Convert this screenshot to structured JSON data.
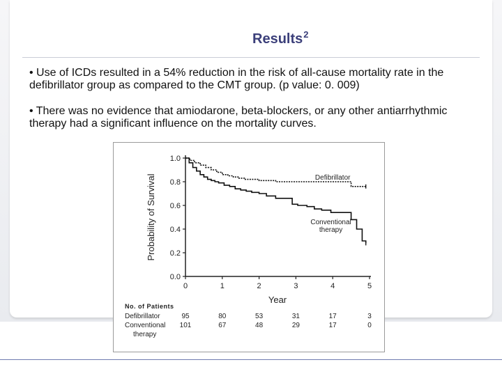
{
  "slide": {
    "title": "Results",
    "title_superscript": "2",
    "bullets": [
      "•   Use of ICDs resulted in a 54% reduction in the risk of all-cause mortality rate in the defibrillator group as compared to the CMT group. (p value: 0. 009)",
      "•  There was no evidence that amiodarone, beta-blockers, or any other antiarrhythmic therapy had a significant influence on the mortality curves."
    ]
  },
  "chart_data": {
    "type": "line",
    "step": true,
    "xlabel": "Year",
    "ylabel": "Probability of Survival",
    "xlim": [
      0,
      5
    ],
    "ylim": [
      0,
      1.0
    ],
    "x_ticks": [
      "0",
      "1",
      "2",
      "3",
      "4",
      "5"
    ],
    "y_ticks": [
      "0.0",
      "0.2",
      "0.4",
      "0.6",
      "0.8",
      "1.0"
    ],
    "series": [
      {
        "name": "Defibrillator",
        "label_lines": [
          "Defibrillator"
        ],
        "dashed": true,
        "x": [
          0,
          0.12,
          0.25,
          0.4,
          0.55,
          0.7,
          0.85,
          1.0,
          1.15,
          1.3,
          1.45,
          1.6,
          2.0,
          2.45,
          4.5,
          4.9
        ],
        "y": [
          1.0,
          0.98,
          0.96,
          0.94,
          0.92,
          0.9,
          0.88,
          0.86,
          0.85,
          0.84,
          0.83,
          0.82,
          0.81,
          0.8,
          0.76,
          0.76
        ]
      },
      {
        "name": "Conventional therapy",
        "label_lines": [
          "Conventional",
          "therapy"
        ],
        "dashed": false,
        "x": [
          0,
          0.1,
          0.2,
          0.3,
          0.4,
          0.5,
          0.6,
          0.7,
          0.8,
          0.9,
          1.05,
          1.2,
          1.35,
          1.5,
          1.65,
          1.8,
          2.0,
          2.2,
          2.45,
          2.9,
          3.05,
          3.3,
          3.5,
          3.7,
          3.95,
          4.5,
          4.65,
          4.8,
          4.9
        ],
        "y": [
          1.0,
          0.96,
          0.92,
          0.89,
          0.86,
          0.84,
          0.82,
          0.81,
          0.8,
          0.79,
          0.77,
          0.76,
          0.74,
          0.73,
          0.72,
          0.71,
          0.7,
          0.68,
          0.66,
          0.61,
          0.6,
          0.59,
          0.57,
          0.56,
          0.54,
          0.48,
          0.4,
          0.3,
          0.28
        ]
      }
    ],
    "patients_table": {
      "header": "No. of Patients",
      "years": [
        "0",
        "1",
        "2",
        "3",
        "4",
        "5"
      ],
      "rows": [
        {
          "label_lines": [
            "Defibrillator"
          ],
          "values": [
            "95",
            "80",
            "53",
            "31",
            "17",
            "3"
          ]
        },
        {
          "label_lines": [
            "Conventional",
            "therapy"
          ],
          "values": [
            "101",
            "67",
            "48",
            "29",
            "17",
            "0"
          ]
        }
      ]
    }
  }
}
